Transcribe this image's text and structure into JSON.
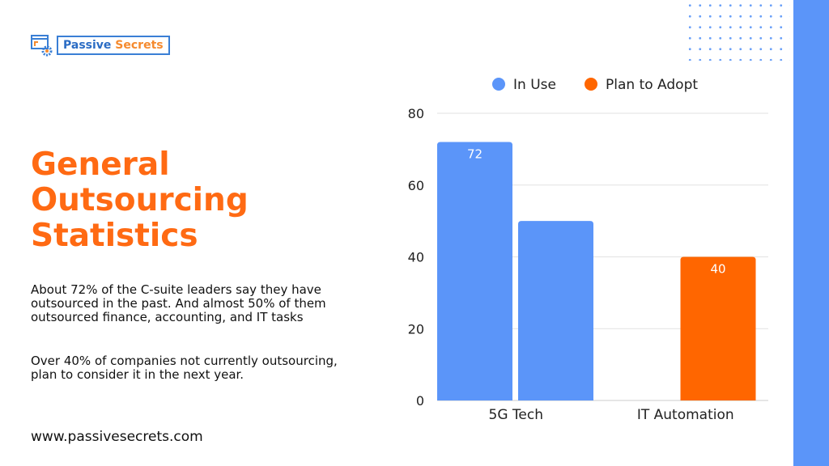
{
  "brand": {
    "name_part1": "Passive",
    "name_part2": "Secrets"
  },
  "heading": {
    "title_lines": [
      "General",
      "Outsourcing",
      "Statistics"
    ]
  },
  "body": {
    "paragraphs": [
      "About 72% of the C-suite leaders say they have outsourced in the past. And almost 50% of them outsourced finance, accounting, and IT tasks",
      "Over 40% of companies not currently outsourcing, plan to consider it in the next year."
    ]
  },
  "footer": {
    "url": "www.passivesecrets.com"
  },
  "colors": {
    "accent": "#ff6a13",
    "blue": "#5b95f9",
    "orange": "#ff6600"
  },
  "chart_data": {
    "type": "bar",
    "categories": [
      "5G Tech",
      "IT Automation"
    ],
    "series": [
      {
        "name": "In Use",
        "color": "#5b95f9",
        "values": [
          72,
          null
        ]
      },
      {
        "name": "Plan to Adopt",
        "color": "#ff6600",
        "values": [
          50,
          40
        ],
        "bar_colors": [
          "#5b95f9",
          "#ff6600"
        ]
      }
    ],
    "data_labels": [
      [
        "72",
        null
      ],
      [
        null,
        "40"
      ]
    ],
    "yticks": [
      0,
      20,
      40,
      60,
      80
    ],
    "ylim": [
      0,
      80
    ],
    "grid": true,
    "legend": "top"
  }
}
